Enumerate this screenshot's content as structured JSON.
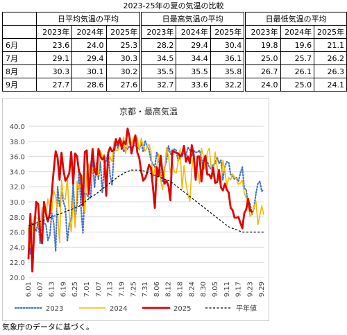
{
  "table": {
    "title": "2023-25年の夏の気温の比較",
    "groups": [
      "日平均気温の平均",
      "日最高気温の平均",
      "日最低気温の平均"
    ],
    "years": [
      "2023年",
      "2024年",
      "2025年"
    ],
    "rows": [
      {
        "label": "6月",
        "values": [
          "23.6",
          "24.0",
          "25.3",
          "28.2",
          "29.4",
          "30.4",
          "19.8",
          "19.6",
          "21.1"
        ]
      },
      {
        "label": "7月",
        "values": [
          "29.1",
          "29.4",
          "30.3",
          "34.5",
          "34.4",
          "36.1",
          "25.0",
          "25.7",
          "26.2"
        ]
      },
      {
        "label": "8月",
        "values": [
          "30.3",
          "30.1",
          "30.2",
          "35.5",
          "35.5",
          "35.8",
          "26.7",
          "26.1",
          "26.3"
        ]
      },
      {
        "label": "9月",
        "values": [
          "27.7",
          "28.6",
          "27.6",
          "32.7",
          "33.6",
          "32.2",
          "24.0",
          "25.0",
          "24.1"
        ]
      }
    ]
  },
  "chart_data": {
    "type": "line",
    "title": "京都・最高気温",
    "ylim": [
      20.0,
      40.0
    ],
    "yticks": [
      "20.0",
      "22.0",
      "24.0",
      "26.0",
      "28.0",
      "30.0",
      "32.0",
      "34.0",
      "36.0",
      "38.0",
      "40.0"
    ],
    "xtick_labels": [
      "6.01",
      "6.07",
      "6.13",
      "6.19",
      "6.25",
      "7.01",
      "7.07",
      "7.13",
      "7.19",
      "7.25",
      "7.31",
      "8.06",
      "8.12",
      "8.18",
      "8.24",
      "8.30",
      "9.05",
      "9.11",
      "9.17",
      "9.23",
      "9.29"
    ],
    "x_start": "6.01",
    "x_step_days": 1,
    "grid": true,
    "legend_position": "bottom",
    "series": [
      {
        "name": "2023",
        "color": "#4472c4",
        "style": "dotted",
        "values": [
          26.5,
          23.1,
          27.2,
          26.8,
          26.1,
          27.4,
          24.5,
          29.0,
          27.2,
          27.0,
          24.9,
          25.6,
          28.5,
          27.2,
          23.5,
          32.0,
          29.4,
          31.2,
          30.0,
          29.2,
          24.8,
          27.1,
          27.8,
          32.5,
          27.5,
          29.8,
          34.3,
          29.4,
          25.9,
          31.2,
          31.0,
          30.6,
          30.5,
          35.4,
          31.9,
          35.1,
          33.0,
          35.3,
          31.2,
          34.8,
          35.4,
          36.6,
          33.5,
          32.2,
          36.6,
          37.7,
          37.1,
          38.3,
          38.0,
          36.6,
          37.2,
          37.0,
          37.4,
          36.9,
          37.5,
          37.4,
          37.3,
          36.9,
          37.8,
          36.6,
          38.1,
          37.4,
          36.9,
          35.5,
          35.0,
          34.6,
          36.6,
          35.6,
          33.6,
          32.6,
          34.5,
          35.4,
          37.4,
          36.4,
          36.1,
          37.0,
          36.8,
          35.4,
          36.0,
          35.9,
          36.9,
          36.1,
          37.2,
          36.9,
          36.0,
          36.8,
          36.5,
          36.6,
          36.8,
          35.8,
          34.3,
          35.0,
          35.3,
          34.6,
          34.3,
          34.9,
          35.1,
          35.9,
          35.1,
          35.5,
          32.9,
          34.7,
          35.3,
          35.2,
          33.6,
          33.4,
          33.0,
          33.2,
          32.7,
          33.8,
          34.6,
          31.8,
          31.6,
          29.6,
          29.7,
          28.3,
          29.2,
          31.1,
          32.4,
          32.7,
          31.4,
          31.6
        ]
      },
      {
        "name": "2024",
        "color": "#f5b800",
        "style": "solid",
        "values": [
          26.5,
          24.0,
          26.4,
          28.0,
          27.9,
          27.8,
          25.5,
          29.3,
          27.9,
          28.1,
          30.4,
          29.2,
          28.7,
          31.5,
          30.7,
          28.6,
          24.6,
          32.8,
          30.5,
          30.3,
          33.2,
          28.2,
          26.0,
          30.3,
          26.6,
          32.7,
          31.7,
          32.5,
          33.5,
          28.5,
          34.0,
          35.0,
          32.4,
          34.5,
          34.4,
          35.0,
          33.5,
          36.8,
          36.0,
          36.3,
          33.5,
          35.2,
          35.9,
          35.3,
          38.0,
          36.8,
          36.8,
          37.6,
          37.3,
          38.6,
          36.4,
          37.7,
          38.2,
          37.7,
          38.5,
          38.8,
          38.4,
          36.8,
          38.4,
          37.5,
          36.7,
          37.2,
          37.6,
          36.7,
          33.0,
          34.4,
          34.7,
          36.3,
          32.8,
          31.6,
          33.8,
          37.2,
          36.1,
          33.8,
          35.3,
          34.0,
          33.8,
          35.3,
          37.0,
          31.7,
          34.8,
          32.5,
          31.0,
          30.1,
          34.3,
          36.5,
          33.7,
          34.2,
          32.4,
          37.1,
          36.0,
          34.1,
          36.6,
          37.1,
          34.5,
          33.3,
          36.6,
          34.7,
          32.8,
          32.2,
          35.5,
          34.1,
          32.1,
          33.2,
          32.9,
          33.7,
          33.2,
          33.0,
          32.3,
          32.5,
          32.9,
          31.2,
          30.5,
          29.4,
          28.1,
          28.4,
          29.3,
          30.1,
          27.0,
          28.2,
          29.5,
          28.3
        ]
      },
      {
        "name": "2025",
        "color": "#e00000",
        "style": "solid-thick",
        "values": [
          22.5,
          28.4,
          20.8,
          26.5,
          30.0,
          29.7,
          26.0,
          24.5,
          30.0,
          28.4,
          27.4,
          28.5,
          31.2,
          34.2,
          36.7,
          35.8,
          32.9,
          36.5,
          34.2,
          32.8,
          33.2,
          33.8,
          36.6,
          32.4,
          36.4,
          36.0,
          34.0,
          33.5,
          29.5,
          36.6,
          36.8,
          31.0,
          34.1,
          37.0,
          34.1,
          33.6,
          37.0,
          36.0,
          35.6,
          36.0,
          30.8,
          36.5,
          37.2,
          36.7,
          36.8,
          38.3,
          37.6,
          38.4,
          37.0,
          38.0,
          37.6,
          39.7,
          38.5,
          36.4,
          37.6,
          38.8,
          36.5,
          35.8,
          34.0,
          32.8,
          33.1,
          33.8,
          34.9,
          34.5,
          32.0,
          29.2,
          34.6,
          33.4,
          36.1,
          33.7,
          32.4,
          32.8,
          32.1,
          30.2,
          36.8,
          36.6,
          36.5,
          36.4,
          36.0,
          36.3,
          37.4,
          35.3,
          36.0,
          35.1,
          37.5,
          36.2,
          32.9,
          36.0,
          36.0,
          32.7,
          35.2,
          36.1,
          33.6,
          33.6,
          33.1,
          34.5,
          32.5,
          32.6,
          34.2,
          31.9,
          31.5,
          32.4,
          31.6,
          31.2,
          29.2,
          28.9,
          27.9,
          27.9,
          28.0,
          27.2,
          26.5,
          28.5,
          29.0,
          30.4,
          28.8,
          28.7
        ]
      },
      {
        "name": "平年値",
        "color": "#000000",
        "style": "dashed",
        "values": [
          26.8,
          26.9,
          27.0,
          27.1,
          27.2,
          27.3,
          27.4,
          27.5,
          27.6,
          27.7,
          27.8,
          27.9,
          28.0,
          28.1,
          28.2,
          28.3,
          28.4,
          28.5,
          28.6,
          28.7,
          28.8,
          28.9,
          29.0,
          29.1,
          29.2,
          29.3,
          29.4,
          29.6,
          29.8,
          30.0,
          30.2,
          30.4,
          30.6,
          30.8,
          30.9,
          31.1,
          31.3,
          31.5,
          31.7,
          31.9,
          32.1,
          32.3,
          32.5,
          32.7,
          32.9,
          33.1,
          33.3,
          33.5,
          33.6,
          33.8,
          33.9,
          34.0,
          34.1,
          34.2,
          34.2,
          34.2,
          34.2,
          34.2,
          34.1,
          34.1,
          34.0,
          33.9,
          33.8,
          33.7,
          33.6,
          33.5,
          33.4,
          33.3,
          33.2,
          33.1,
          33.0,
          32.9,
          32.8,
          32.7,
          32.5,
          32.3,
          32.1,
          31.9,
          31.7,
          31.5,
          31.3,
          31.1,
          30.9,
          30.7,
          30.5,
          30.3,
          30.1,
          29.9,
          29.7,
          29.5,
          29.3,
          29.1,
          28.9,
          28.7,
          28.5,
          28.3,
          28.1,
          27.9,
          27.7,
          27.5,
          27.3,
          27.1,
          26.9,
          26.7,
          26.6,
          26.5,
          26.4,
          26.3,
          26.2,
          26.1,
          26.0,
          26.0,
          26.0,
          26.0,
          26.0,
          26.0,
          26.0,
          26.0,
          26.0,
          26.0,
          26.0,
          26.0
        ]
      }
    ]
  },
  "note": "気象庁のデータに基づく。"
}
